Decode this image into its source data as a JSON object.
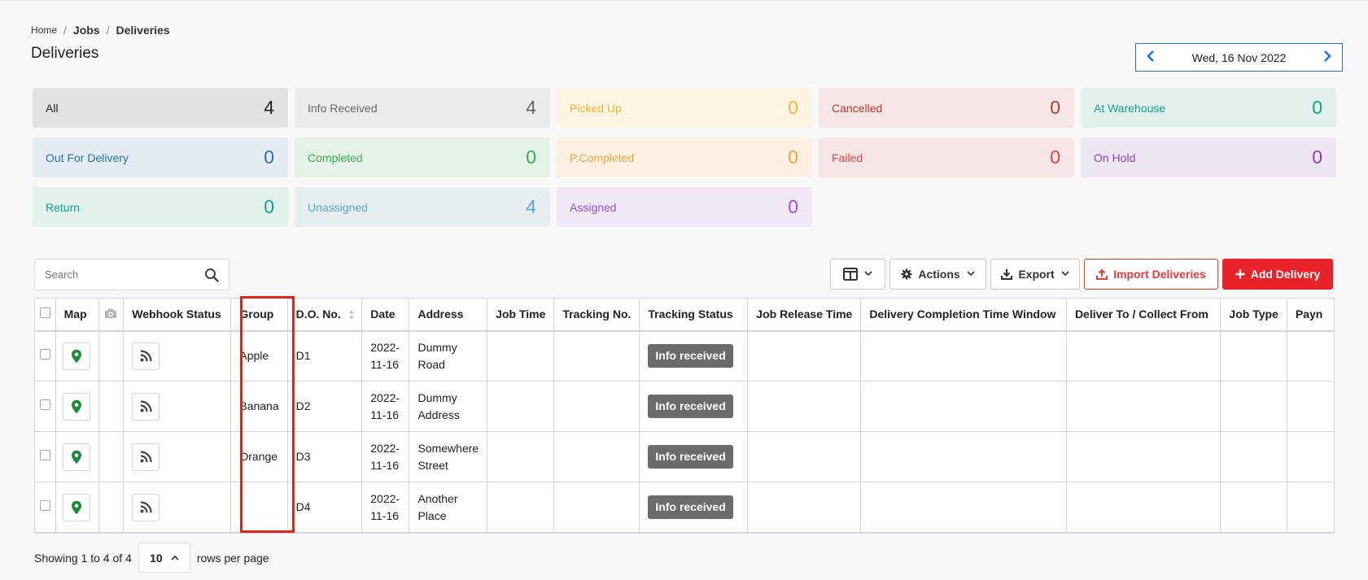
{
  "breadcrumb": {
    "home": "Home",
    "jobs": "Jobs",
    "current": "Deliveries",
    "separator": "/"
  },
  "page_title": "Deliveries",
  "date_nav": {
    "date": "Wed, 16 Nov 2022",
    "prev": "‹",
    "next": "›"
  },
  "status_cards": [
    {
      "label": "All",
      "count": "4",
      "bg": "#e2e2e2",
      "color": "#222222"
    },
    {
      "label": "Info Received",
      "count": "4",
      "bg": "#ececec",
      "color": "#666666"
    },
    {
      "label": "Picked Up",
      "count": "0",
      "bg": "#fdf4e2",
      "color": "#f0b53b"
    },
    {
      "label": "Cancelled",
      "count": "0",
      "bg": "#f5e7e5",
      "color": "#c0392b"
    },
    {
      "label": "At Warehouse",
      "count": "0",
      "bg": "#e1f2ee",
      "color": "#16a085"
    },
    {
      "label": "Out For Delivery",
      "count": "0",
      "bg": "#e4ebf3",
      "color": "#2874a6"
    },
    {
      "label": "Completed",
      "count": "0",
      "bg": "#e5f2e7",
      "color": "#3daa4f"
    },
    {
      "label": "P.Completed",
      "count": "0",
      "bg": "#fcf0e3",
      "color": "#f2a541"
    },
    {
      "label": "Failed",
      "count": "0",
      "bg": "#f6e6e6",
      "color": "#e8413f"
    },
    {
      "label": "On Hold",
      "count": "0",
      "bg": "#eee7f2",
      "color": "#8e44ad"
    },
    {
      "label": "Return",
      "count": "0",
      "bg": "#e1f1ec",
      "color": "#16a085"
    },
    {
      "label": "Unassigned",
      "count": "4",
      "bg": "#e7eef0",
      "color": "#5aa9c9"
    },
    {
      "label": "Assigned",
      "count": "0",
      "bg": "#f0e8f6",
      "color": "#9b51e0"
    }
  ],
  "search": {
    "placeholder": "Search",
    "icon": "search-icon"
  },
  "toolbar": {
    "columns_icon": "columns-icon",
    "actions_label": "Actions",
    "export_label": "Export",
    "import_label": "Import Deliveries",
    "add_label": "Add Delivery"
  },
  "table": {
    "headers": [
      "",
      "Map",
      "",
      "Webhook Status",
      "Group",
      "D.O. No.",
      "Date",
      "Address",
      "Job Time",
      "Tracking No.",
      "Tracking Status",
      "Job Release Time",
      "Delivery Completion Time Window",
      "Deliver To / Collect From",
      "Job Type",
      "Payn"
    ],
    "rows": [
      {
        "group": "Apple",
        "do_no": "D1",
        "date_line1": "2022-",
        "date_line2": "11-16",
        "addr_line1": "Dummy",
        "addr_line2": "Road",
        "tracking_status": "Info received"
      },
      {
        "group": "Banana",
        "do_no": "D2",
        "date_line1": "2022-",
        "date_line2": "11-16",
        "addr_line1": "Dummy",
        "addr_line2": "Address",
        "tracking_status": "Info received"
      },
      {
        "group": "Orange",
        "do_no": "D3",
        "date_line1": "2022-",
        "date_line2": "11-16",
        "addr_line1": "Somewhere",
        "addr_line2": "Street",
        "tracking_status": "Info received"
      },
      {
        "group": "",
        "do_no": "D4",
        "date_line1": "2022-",
        "date_line2": "11-16",
        "addr_line1": "Another",
        "addr_line2": "Place",
        "tracking_status": "Info received"
      }
    ]
  },
  "footer": {
    "showing": "Showing 1 to 4 of 4",
    "per_page": "10",
    "rows_label": "rows per page"
  },
  "colors": {
    "accent": "#1d6fd8",
    "danger": "#e8232b",
    "badge": "#6b6b6b",
    "map_pin": "#1e8a3a",
    "highlight": "#e0241c"
  }
}
